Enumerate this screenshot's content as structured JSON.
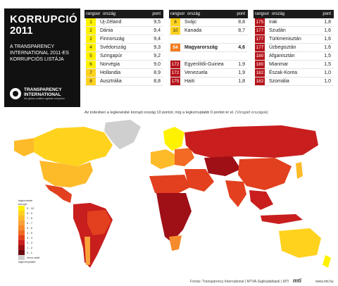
{
  "title": {
    "line1": "KORRUPCIÓ",
    "line2": "2011",
    "subtitle": "A TRANSPARENCY INTERNATIONAL 2011-ES KORRUPCIÓS LISTÁJA",
    "logo_line1": "TRANSPARENCY",
    "logo_line2": "INTERNATIONAL",
    "logo_tagline": "the global coalition against corruption"
  },
  "header_labels": {
    "rank": "rangsor",
    "country": "ország",
    "points": "pont"
  },
  "table1": [
    {
      "rank": "1",
      "country": "Új-Zéland",
      "points": "9,5",
      "color": "#fff200"
    },
    {
      "rank": "2",
      "country": "Dánia",
      "points": "9,4",
      "color": "#fff200"
    },
    {
      "rank": "2",
      "country": "Finnország",
      "points": "9,4",
      "color": "#fff200"
    },
    {
      "rank": "4",
      "country": "Svédország",
      "points": "9,3",
      "color": "#fff200"
    },
    {
      "rank": "5",
      "country": "Szingapúr",
      "points": "9,2",
      "color": "#fff200"
    },
    {
      "rank": "6",
      "country": "Norvégia",
      "points": "9,0",
      "color": "#fff200"
    },
    {
      "rank": "7",
      "country": "Hollandia",
      "points": "8,9",
      "color": "#ffd21e"
    },
    {
      "rank": "8",
      "country": "Ausztrália",
      "points": "8,8",
      "color": "#ffd21e"
    }
  ],
  "table2": [
    {
      "rank": "8",
      "country": "Svájc",
      "points": "8,8",
      "color": "#ffd21e"
    },
    {
      "rank": "10",
      "country": "Kanada",
      "points": "8,7",
      "color": "#ffd21e"
    },
    {
      "rank": "",
      "country": "",
      "points": "",
      "color": "#ffffff"
    },
    {
      "rank": "54",
      "country": "Magyarország",
      "points": "4,6",
      "color": "#f47b20",
      "bold": true
    },
    {
      "rank": "",
      "country": "",
      "points": "",
      "color": "#ffffff"
    },
    {
      "rank": "172",
      "country": "Egyenlítői-Guinea",
      "points": "1,9",
      "color": "#b5141b"
    },
    {
      "rank": "172",
      "country": "Venezuela",
      "points": "1,9",
      "color": "#b5141b"
    },
    {
      "rank": "175",
      "country": "Haiti",
      "points": "1,8",
      "color": "#b5141b"
    }
  ],
  "table3": [
    {
      "rank": "175",
      "country": "Irak",
      "points": "1,8",
      "color": "#b5141b"
    },
    {
      "rank": "177",
      "country": "Szudán",
      "points": "1,6",
      "color": "#b5141b"
    },
    {
      "rank": "177",
      "country": "Türkmenisztán",
      "points": "1,6",
      "color": "#b5141b"
    },
    {
      "rank": "177",
      "country": "Üzbegisztán",
      "points": "1,6",
      "color": "#b5141b"
    },
    {
      "rank": "180",
      "country": "Afganisztán",
      "points": "1,5",
      "color": "#b5141b"
    },
    {
      "rank": "180",
      "country": "Mianmar",
      "points": "1,5",
      "color": "#b5141b"
    },
    {
      "rank": "182",
      "country": "Észak-Korea",
      "points": "1,0",
      "color": "#b5141b"
    },
    {
      "rank": "182",
      "country": "Szomália",
      "points": "1,0",
      "color": "#b5141b"
    }
  ],
  "caption": {
    "main": "Az indexben a legkevésbé korrupt ország 10 pontot, míg a legkorruptabb 0 pontot ér el.",
    "italic": "(Vizsgált országok)"
  },
  "legend": {
    "top_label": "legkevésbé korrupt",
    "bottom_label": "legkorruptabb",
    "items": [
      {
        "label": "9 - 10",
        "color": "#fff200"
      },
      {
        "label": "8 - 9",
        "color": "#ffd21e"
      },
      {
        "label": "7 - 8",
        "color": "#fdbb2a"
      },
      {
        "label": "6 - 7",
        "color": "#fba23a"
      },
      {
        "label": "5 - 6",
        "color": "#f68b2d"
      },
      {
        "label": "4 - 5",
        "color": "#f26a24"
      },
      {
        "label": "3 - 4",
        "color": "#e2401e"
      },
      {
        "label": "2 - 3",
        "color": "#c81e1e"
      },
      {
        "label": "1 - 2",
        "color": "#9e0f16"
      },
      {
        "label": "0 - 1",
        "color": "#6b0a0e"
      },
      {
        "label": "nincs adat",
        "color": "#cfcfcf"
      }
    ]
  },
  "footer": {
    "source": "Forrás: Transparency International | MTVA-Sajtóadatbank | MTI",
    "logo": "mti",
    "url": "www.mti.hu"
  }
}
